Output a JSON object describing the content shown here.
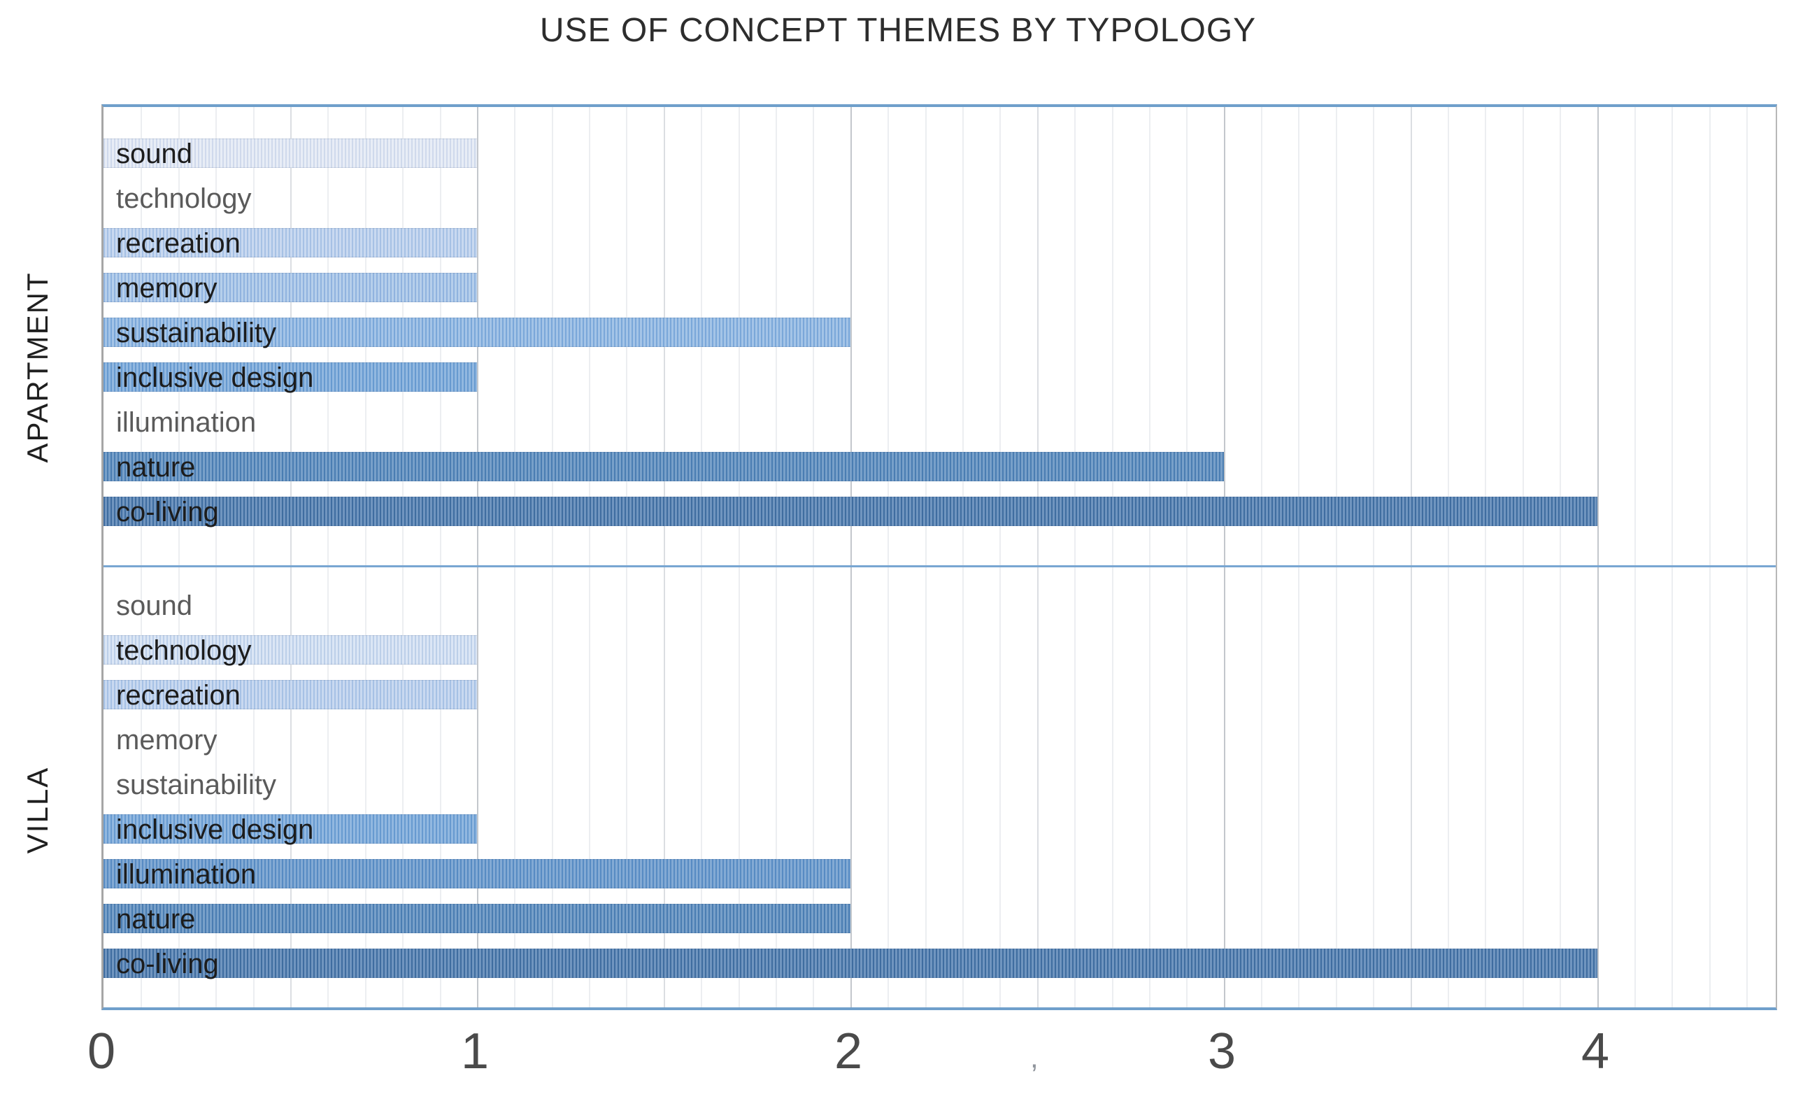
{
  "title": "USE OF CONCEPT THEMES BY TYPOLOGY",
  "axis_artifact": ",",
  "chart_data": {
    "type": "bar",
    "orientation": "horizontal",
    "title": "USE OF CONCEPT THEMES BY TYPOLOGY",
    "categories": [
      "sound",
      "technology",
      "recreation",
      "memory",
      "sustainability",
      "inclusive design",
      "illumination",
      "nature",
      "co-living"
    ],
    "series": [
      {
        "name": "APARTMENT",
        "values": [
          1,
          0,
          1,
          1,
          2,
          1,
          0,
          3,
          4
        ]
      },
      {
        "name": "VILLA",
        "values": [
          0,
          1,
          1,
          0,
          0,
          1,
          2,
          2,
          4
        ]
      }
    ],
    "xlim": [
      0,
      4.5
    ],
    "x_ticks": [
      "0",
      "1",
      "2",
      "3",
      "4"
    ],
    "grid": {
      "minor_step": 0.1,
      "half_step": 0.5,
      "major_step": 1.0
    },
    "legend": "none",
    "bar_fill_style": "thin vertical stripe pattern, one shade per category from very light blue to dark slate blue"
  },
  "colors": {
    "plot_border": "#6f9fcb",
    "panel_divider": "#79a6d2",
    "axis_line_left": "#a6a6a6",
    "axis_line_right": "#b8b8b8",
    "grid_minor": "#eceef1",
    "grid_half": "#dbdee2",
    "grid_major": "#c3c7cc",
    "label_dark": "#1c1c1c",
    "label_muted": "#5a5a5a",
    "tick": "#4a4a4a",
    "title": "#2d2d2d",
    "bar_ramp": [
      {
        "category": "sound",
        "dark": "#cfd9ec",
        "light": "#e8edf6"
      },
      {
        "category": "technology",
        "dark": "#bccfe9",
        "light": "#dbe6f5"
      },
      {
        "category": "recreation",
        "dark": "#a6c1e5",
        "light": "#c9d9f0"
      },
      {
        "category": "memory",
        "dark": "#90b3df",
        "light": "#b6cfeb"
      },
      {
        "category": "sustainability",
        "dark": "#7aa7d9",
        "light": "#a4c4e7"
      },
      {
        "category": "inclusive design",
        "dark": "#679ad0",
        "light": "#92b8e0"
      },
      {
        "category": "illumination",
        "dark": "#578bc3",
        "light": "#83aad4"
      },
      {
        "category": "nature",
        "dark": "#4a7db2",
        "light": "#78a0c9"
      },
      {
        "category": "co-living",
        "dark": "#3f6da0",
        "light": "#7095bf"
      }
    ]
  }
}
